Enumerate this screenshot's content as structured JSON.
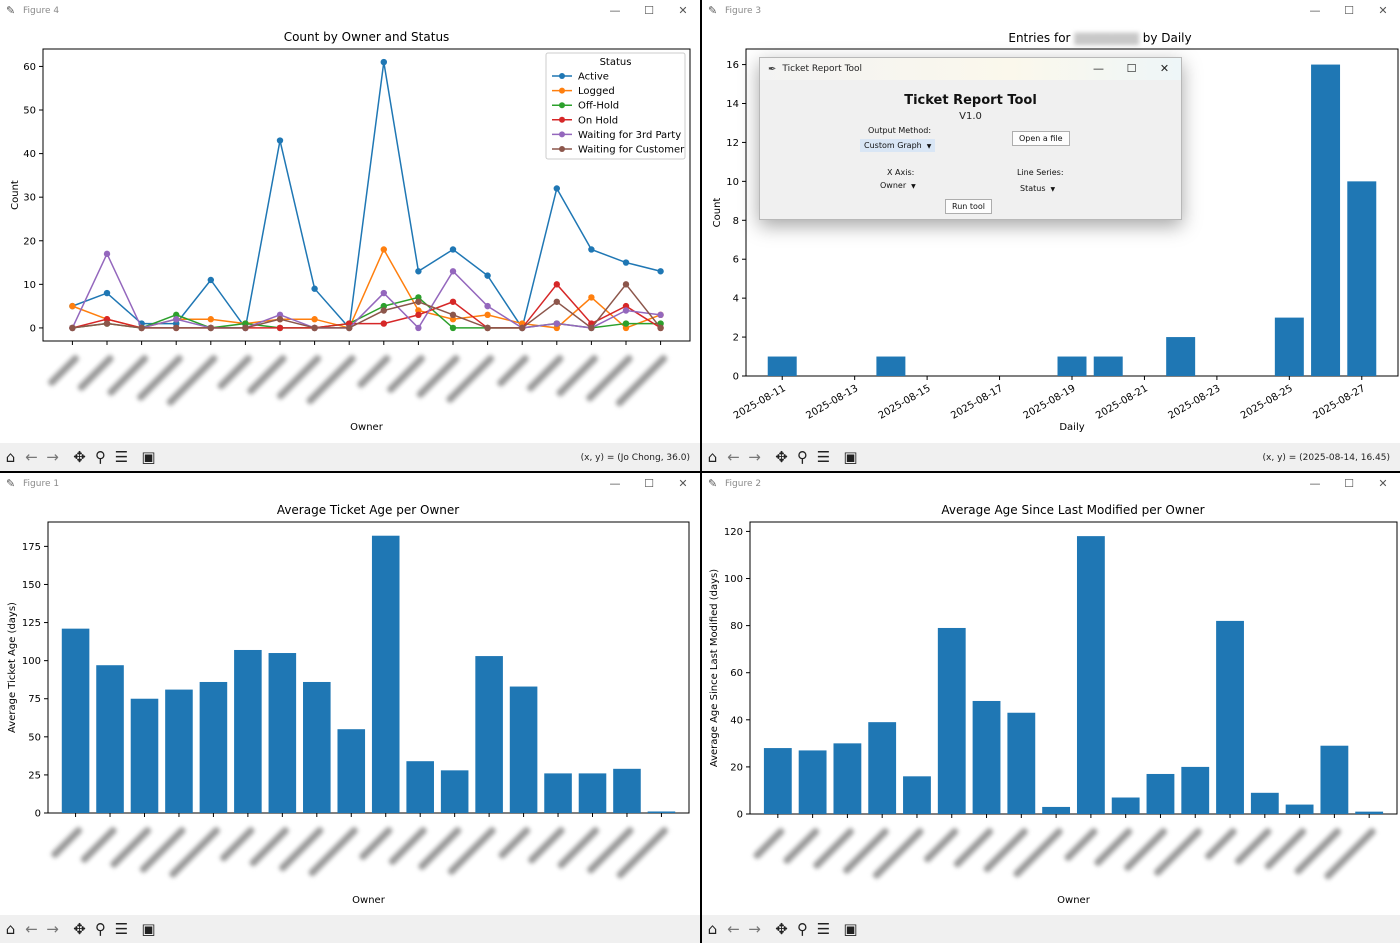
{
  "windows": {
    "w4": {
      "title": "Figure 4",
      "coords": "(x, y) = (Jo Chong, 36.0)"
    },
    "w3": {
      "title": "Figure 3",
      "coords": "(x, y) = (2025-08-14, 16.45)"
    },
    "w1": {
      "title": "Figure 1",
      "coords": ""
    },
    "w2": {
      "title": "Figure 2",
      "coords": ""
    }
  },
  "window_controls": {
    "minimize": "—",
    "maximize": "☐",
    "close": "✕"
  },
  "toolbar_icons": [
    "home-icon",
    "back-arrow-icon",
    "forward-arrow-icon",
    "pan-icon",
    "zoom-icon",
    "configure-icon",
    "save-icon"
  ],
  "dialog": {
    "title": "Ticket Report Tool",
    "heading": "Ticket Report Tool",
    "version": "V1.0",
    "output_method_label": "Output Method:",
    "output_method_value": "Custom Graph",
    "open_file_label": "Open a file",
    "x_axis_label": "X Axis:",
    "x_axis_value": "Owner",
    "line_series_label": "Line Series:",
    "line_series_value": "Status",
    "run_label": "Run tool"
  },
  "chart_data": [
    {
      "id": "fig4",
      "type": "line",
      "title": "Count by Owner and Status",
      "xlabel": "Owner",
      "ylabel": "Count",
      "ylim": [
        -3,
        64
      ],
      "yticks": [
        0,
        10,
        20,
        30,
        40,
        50,
        60
      ],
      "grid": false,
      "legend_title": "Status",
      "legend_position": "top-right",
      "categories_count": 18,
      "series": [
        {
          "name": "Active",
          "color": "#1f77b4",
          "values": [
            5,
            8,
            1,
            1,
            11,
            0,
            43,
            9,
            0,
            61,
            13,
            18,
            12,
            0,
            32,
            18,
            15,
            13
          ]
        },
        {
          "name": "Logged",
          "color": "#ff7f0e",
          "values": [
            5,
            2,
            0,
            2,
            2,
            1,
            2,
            2,
            0,
            18,
            4,
            2,
            3,
            1,
            0,
            7,
            0,
            3
          ]
        },
        {
          "name": "Off-Hold",
          "color": "#2ca02c",
          "values": [
            0,
            1,
            0,
            3,
            0,
            1,
            0,
            0,
            1,
            5,
            7,
            0,
            0,
            0,
            1,
            0,
            1,
            1
          ]
        },
        {
          "name": "On Hold",
          "color": "#d62728",
          "values": [
            0,
            2,
            0,
            0,
            0,
            0,
            0,
            0,
            1,
            1,
            3,
            6,
            0,
            0,
            10,
            1,
            5,
            0
          ]
        },
        {
          "name": "Waiting for 3rd Party",
          "color": "#9467bd",
          "values": [
            0,
            17,
            0,
            2,
            0,
            0,
            3,
            0,
            0,
            8,
            0,
            13,
            5,
            0,
            1,
            0,
            4,
            3
          ]
        },
        {
          "name": "Waiting for Customer",
          "color": "#8c564b",
          "values": [
            0,
            1,
            0,
            0,
            0,
            0,
            2,
            0,
            0,
            4,
            6,
            3,
            0,
            0,
            6,
            0,
            10,
            0
          ]
        }
      ]
    },
    {
      "id": "fig3",
      "type": "bar",
      "title_prefix": "Entries for",
      "title_suffix": "by Daily",
      "xlabel": "Daily",
      "ylabel": "Count",
      "ylim": [
        0,
        16.8
      ],
      "yticks": [
        0,
        2,
        4,
        6,
        8,
        10,
        12,
        14,
        16
      ],
      "x_range": [
        "2025-08-10",
        "2025-08-28"
      ],
      "xticks": [
        "2025-08-11",
        "2025-08-13",
        "2025-08-15",
        "2025-08-17",
        "2025-08-19",
        "2025-08-21",
        "2025-08-23",
        "2025-08-25",
        "2025-08-27"
      ],
      "bars": [
        {
          "date": "2025-08-11",
          "value": 1
        },
        {
          "date": "2025-08-14",
          "value": 1
        },
        {
          "date": "2025-08-19",
          "value": 1
        },
        {
          "date": "2025-08-20",
          "value": 1
        },
        {
          "date": "2025-08-22",
          "value": 2
        },
        {
          "date": "2025-08-25",
          "value": 3
        },
        {
          "date": "2025-08-26",
          "value": 16
        },
        {
          "date": "2025-08-27",
          "value": 10
        }
      ]
    },
    {
      "id": "fig1",
      "type": "bar",
      "title": "Average Ticket Age per Owner",
      "xlabel": "Owner",
      "ylabel": "Average Ticket Age (days)",
      "ylim": [
        0,
        191
      ],
      "yticks": [
        0,
        25,
        50,
        75,
        100,
        125,
        150,
        175
      ],
      "values": [
        121,
        97,
        75,
        81,
        86,
        107,
        105,
        86,
        55,
        182,
        34,
        28,
        103,
        83,
        26,
        26,
        29,
        1
      ]
    },
    {
      "id": "fig2",
      "type": "bar",
      "title": "Average Age Since Last Modified per Owner",
      "xlabel": "Owner",
      "ylabel": "Average Age Since Last Modified (days)",
      "ylim": [
        0,
        124
      ],
      "yticks": [
        0,
        20,
        40,
        60,
        80,
        100,
        120
      ],
      "values": [
        28,
        27,
        30,
        39,
        16,
        79,
        48,
        43,
        3,
        118,
        7,
        17,
        20,
        82,
        9,
        4,
        29,
        1
      ]
    }
  ]
}
